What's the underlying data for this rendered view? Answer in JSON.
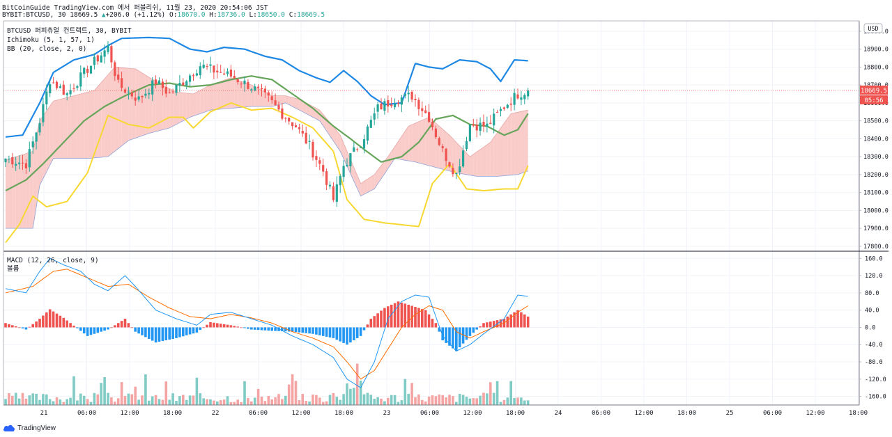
{
  "header": {
    "line1": "BitCoinGuide TradingView.com 에서 퍼블리쉬, 11월 23, 2020 20:54:06 JST",
    "symbol": "BYBIT:BTCUSD, 30",
    "last": "18669.5",
    "change": "+206.0 (+1.12%)",
    "o_label": "O:",
    "o": "18670.0",
    "h_label": "H:",
    "h": "18736.0",
    "l_label": "L:",
    "l": "18650.0",
    "c_label": "C:",
    "c": "18669.5"
  },
  "main_pane": {
    "legend": [
      "BTCUSD 퍼피츄얼 컨트랙트, 30, BYBIT",
      "Ichimoku (5, 1, 57, 1)",
      "BB (20, close, 2, 0)"
    ],
    "currency_badge": "USD",
    "price_tag": "18669.5",
    "countdown_tag": "05:56"
  },
  "macd_pane": {
    "legend": [
      "MACD (12, 26, close, 9)",
      "볼륨"
    ]
  },
  "footer": {
    "brand": "TradingView"
  },
  "colors": {
    "up": "#26a69a",
    "down": "#ef5350",
    "bb_upper": "#1e88e5",
    "bb_basis": "#66a55a",
    "bb_lower": "#f7d832",
    "cloud_bull": "#f8c6c4",
    "cloud_bear": "#a9cef0",
    "macd_line": "#2196f3",
    "signal_line": "#ff6d00",
    "hist_pos": "#ef5350",
    "hist_neg": "#2196f3",
    "vol_up": "#80cbc4",
    "vol_down": "#f4a5a3",
    "last_price_tag": "#ef5350"
  },
  "chart_data": [
    {
      "type": "candlestick",
      "title": "BTCUSD 퍼피츄얼 컨트랙트, 30, BYBIT",
      "yticks": [
        17800,
        17900,
        18000,
        18100,
        18200,
        18300,
        18400,
        18500,
        18600,
        18700,
        18800,
        18900,
        19000
      ],
      "ylim": [
        17780,
        19050
      ],
      "xticks": [
        {
          "i": 0,
          "label": "21"
        },
        {
          "i": 1,
          "label": "06:00"
        },
        {
          "i": 2,
          "label": "12:00"
        },
        {
          "i": 3,
          "label": "18:00"
        },
        {
          "i": 4,
          "label": "22"
        },
        {
          "i": 5,
          "label": "06:00"
        },
        {
          "i": 6,
          "label": "12:00"
        },
        {
          "i": 7,
          "label": "18:00"
        },
        {
          "i": 8,
          "label": "23"
        },
        {
          "i": 9,
          "label": "06:00"
        },
        {
          "i": 10,
          "label": "12:00"
        },
        {
          "i": 11,
          "label": "18:00"
        },
        {
          "i": 12,
          "label": "24"
        },
        {
          "i": 13,
          "label": "06:00"
        },
        {
          "i": 14,
          "label": "12:00"
        },
        {
          "i": 15,
          "label": "18:00"
        },
        {
          "i": 16,
          "label": "25"
        },
        {
          "i": 17,
          "label": "06:00"
        },
        {
          "i": 18,
          "label": "12:00"
        },
        {
          "i": 19,
          "label": "18:00"
        }
      ],
      "last_price": 18669.5,
      "close_path": [
        [
          0,
          18290
        ],
        [
          6,
          18260
        ],
        [
          10,
          18500
        ],
        [
          13,
          18730
        ],
        [
          18,
          18650
        ],
        [
          24,
          18790
        ],
        [
          30,
          18910
        ],
        [
          33,
          18700
        ],
        [
          39,
          18620
        ],
        [
          44,
          18720
        ],
        [
          48,
          18650
        ],
        [
          52,
          18720
        ],
        [
          57,
          18810
        ],
        [
          61,
          18780
        ],
        [
          66,
          18750
        ],
        [
          72,
          18690
        ],
        [
          77,
          18620
        ],
        [
          81,
          18540
        ],
        [
          85,
          18470
        ],
        [
          89,
          18360
        ],
        [
          93,
          18220
        ],
        [
          96,
          18060
        ],
        [
          99,
          18250
        ],
        [
          104,
          18380
        ],
        [
          109,
          18570
        ],
        [
          114,
          18620
        ],
        [
          119,
          18640
        ],
        [
          124,
          18520
        ],
        [
          128,
          18330
        ],
        [
          132,
          18200
        ],
        [
          136,
          18480
        ],
        [
          141,
          18470
        ],
        [
          146,
          18580
        ],
        [
          150,
          18650
        ],
        [
          153,
          18669.5
        ]
      ],
      "bb_upper": [
        [
          0,
          18410
        ],
        [
          5,
          18420
        ],
        [
          10,
          18600
        ],
        [
          14,
          18770
        ],
        [
          20,
          18840
        ],
        [
          26,
          18870
        ],
        [
          30,
          18920
        ],
        [
          34,
          18960
        ],
        [
          42,
          18965
        ],
        [
          48,
          18960
        ],
        [
          54,
          18900
        ],
        [
          59,
          18885
        ],
        [
          64,
          18910
        ],
        [
          70,
          18900
        ],
        [
          76,
          18860
        ],
        [
          81,
          18840
        ],
        [
          86,
          18780
        ],
        [
          91,
          18740
        ],
        [
          95,
          18715
        ],
        [
          99,
          18780
        ],
        [
          103,
          18720
        ],
        [
          107,
          18640
        ],
        [
          111,
          18590
        ],
        [
          116,
          18600
        ],
        [
          120,
          18820
        ],
        [
          124,
          18800
        ],
        [
          128,
          18790
        ],
        [
          133,
          18840
        ],
        [
          138,
          18830
        ],
        [
          142,
          18790
        ],
        [
          145,
          18720
        ],
        [
          149,
          18840
        ],
        [
          153,
          18835
        ]
      ],
      "bb_basis": [
        [
          0,
          18110
        ],
        [
          6,
          18170
        ],
        [
          11,
          18260
        ],
        [
          17,
          18380
        ],
        [
          23,
          18500
        ],
        [
          29,
          18580
        ],
        [
          35,
          18640
        ],
        [
          42,
          18700
        ],
        [
          48,
          18710
        ],
        [
          54,
          18690
        ],
        [
          60,
          18700
        ],
        [
          66,
          18730
        ],
        [
          72,
          18750
        ],
        [
          78,
          18730
        ],
        [
          84,
          18650
        ],
        [
          90,
          18570
        ],
        [
          96,
          18470
        ],
        [
          101,
          18400
        ],
        [
          105,
          18340
        ],
        [
          110,
          18270
        ],
        [
          116,
          18300
        ],
        [
          121,
          18380
        ],
        [
          126,
          18510
        ],
        [
          131,
          18530
        ],
        [
          136,
          18480
        ],
        [
          141,
          18470
        ],
        [
          146,
          18420
        ],
        [
          150,
          18450
        ],
        [
          153,
          18540
        ]
      ],
      "bb_lower": [
        [
          0,
          17820
        ],
        [
          4,
          17920
        ],
        [
          8,
          18080
        ],
        [
          12,
          18020
        ],
        [
          18,
          18050
        ],
        [
          24,
          18210
        ],
        [
          30,
          18530
        ],
        [
          36,
          18480
        ],
        [
          42,
          18460
        ],
        [
          48,
          18520
        ],
        [
          52,
          18520
        ],
        [
          55,
          18460
        ],
        [
          60,
          18550
        ],
        [
          66,
          18600
        ],
        [
          72,
          18560
        ],
        [
          78,
          18570
        ],
        [
          84,
          18520
        ],
        [
          90,
          18460
        ],
        [
          96,
          18330
        ],
        [
          100,
          18060
        ],
        [
          105,
          17950
        ],
        [
          111,
          17930
        ],
        [
          116,
          17920
        ],
        [
          121,
          17910
        ],
        [
          125,
          18150
        ],
        [
          130,
          18260
        ],
        [
          135,
          18120
        ],
        [
          140,
          18110
        ],
        [
          146,
          18120
        ],
        [
          150,
          18120
        ],
        [
          153,
          18250
        ]
      ],
      "ichimoku_span_a": [
        [
          0,
          18280
        ],
        [
          8,
          18330
        ],
        [
          10,
          18500
        ],
        [
          14,
          18610
        ],
        [
          20,
          18640
        ],
        [
          26,
          18670
        ],
        [
          32,
          18800
        ],
        [
          38,
          18790
        ],
        [
          44,
          18720
        ],
        [
          50,
          18660
        ],
        [
          55,
          18650
        ],
        [
          60,
          18700
        ],
        [
          66,
          18740
        ],
        [
          72,
          18700
        ],
        [
          78,
          18640
        ],
        [
          82,
          18640
        ],
        [
          86,
          18620
        ],
        [
          92,
          18560
        ],
        [
          98,
          18420
        ],
        [
          104,
          18150
        ],
        [
          108,
          18200
        ],
        [
          112,
          18300
        ],
        [
          118,
          18470
        ],
        [
          124,
          18520
        ],
        [
          130,
          18420
        ],
        [
          136,
          18300
        ],
        [
          142,
          18380
        ],
        [
          148,
          18540
        ],
        [
          153,
          18560
        ]
      ],
      "ichimoku_span_b": [
        [
          0,
          17900
        ],
        [
          8,
          17900
        ],
        [
          10,
          18140
        ],
        [
          14,
          18290
        ],
        [
          24,
          18290
        ],
        [
          30,
          18300
        ],
        [
          36,
          18390
        ],
        [
          42,
          18430
        ],
        [
          48,
          18460
        ],
        [
          54,
          18520
        ],
        [
          60,
          18560
        ],
        [
          66,
          18570
        ],
        [
          72,
          18580
        ],
        [
          78,
          18580
        ],
        [
          82,
          18600
        ],
        [
          86,
          18560
        ],
        [
          92,
          18500
        ],
        [
          98,
          18330
        ],
        [
          104,
          18080
        ],
        [
          108,
          18120
        ],
        [
          114,
          18290
        ],
        [
          120,
          18270
        ],
        [
          126,
          18240
        ],
        [
          132,
          18210
        ],
        [
          138,
          18190
        ],
        [
          144,
          18190
        ],
        [
          150,
          18200
        ],
        [
          153,
          18220
        ]
      ]
    },
    {
      "type": "macd",
      "title": "MACD (12, 26, close, 9)",
      "yticks": [
        -160,
        -120,
        -80,
        -40,
        0,
        40,
        80,
        120,
        160
      ],
      "ylim": [
        -180,
        175
      ],
      "macd": [
        [
          0,
          90
        ],
        [
          6,
          80
        ],
        [
          10,
          130
        ],
        [
          13,
          160
        ],
        [
          17,
          145
        ],
        [
          22,
          130
        ],
        [
          26,
          100
        ],
        [
          30,
          85
        ],
        [
          35,
          120
        ],
        [
          38,
          95
        ],
        [
          44,
          40
        ],
        [
          50,
          20
        ],
        [
          56,
          5
        ],
        [
          60,
          30
        ],
        [
          66,
          35
        ],
        [
          72,
          20
        ],
        [
          78,
          5
        ],
        [
          84,
          -20
        ],
        [
          90,
          -40
        ],
        [
          96,
          -70
        ],
        [
          100,
          -120
        ],
        [
          104,
          -140
        ],
        [
          108,
          -80
        ],
        [
          112,
          20
        ],
        [
          116,
          60
        ],
        [
          120,
          75
        ],
        [
          124,
          70
        ],
        [
          128,
          -20
        ],
        [
          132,
          -55
        ],
        [
          136,
          -40
        ],
        [
          140,
          -15
        ],
        [
          146,
          20
        ],
        [
          150,
          75
        ],
        [
          153,
          72
        ]
      ],
      "signal": [
        [
          0,
          80
        ],
        [
          8,
          95
        ],
        [
          14,
          130
        ],
        [
          18,
          135
        ],
        [
          24,
          115
        ],
        [
          30,
          95
        ],
        [
          36,
          100
        ],
        [
          42,
          70
        ],
        [
          48,
          45
        ],
        [
          54,
          25
        ],
        [
          60,
          20
        ],
        [
          66,
          30
        ],
        [
          72,
          22
        ],
        [
          78,
          10
        ],
        [
          84,
          -10
        ],
        [
          90,
          -25
        ],
        [
          96,
          -45
        ],
        [
          100,
          -80
        ],
        [
          104,
          -120
        ],
        [
          108,
          -100
        ],
        [
          112,
          -50
        ],
        [
          116,
          0
        ],
        [
          120,
          30
        ],
        [
          124,
          50
        ],
        [
          128,
          40
        ],
        [
          132,
          -10
        ],
        [
          136,
          -25
        ],
        [
          140,
          -10
        ],
        [
          146,
          10
        ],
        [
          150,
          35
        ],
        [
          153,
          50
        ]
      ],
      "histogram": [
        [
          0,
          10
        ],
        [
          6,
          -5
        ],
        [
          10,
          20
        ],
        [
          13,
          42
        ],
        [
          17,
          22
        ],
        [
          24,
          -20
        ],
        [
          30,
          -5
        ],
        [
          35,
          20
        ],
        [
          38,
          -10
        ],
        [
          44,
          -35
        ],
        [
          50,
          -25
        ],
        [
          56,
          -12
        ],
        [
          60,
          12
        ],
        [
          66,
          5
        ],
        [
          72,
          -5
        ],
        [
          78,
          -8
        ],
        [
          84,
          -10
        ],
        [
          90,
          -15
        ],
        [
          96,
          -25
        ],
        [
          100,
          -40
        ],
        [
          104,
          -20
        ],
        [
          107,
          20
        ],
        [
          111,
          45
        ],
        [
          115,
          60
        ],
        [
          119,
          50
        ],
        [
          123,
          40
        ],
        [
          126,
          10
        ],
        [
          128,
          -30
        ],
        [
          132,
          -55
        ],
        [
          136,
          -20
        ],
        [
          140,
          10
        ],
        [
          146,
          20
        ],
        [
          150,
          40
        ],
        [
          153,
          25
        ]
      ],
      "volume_label": "볼륨"
    }
  ]
}
